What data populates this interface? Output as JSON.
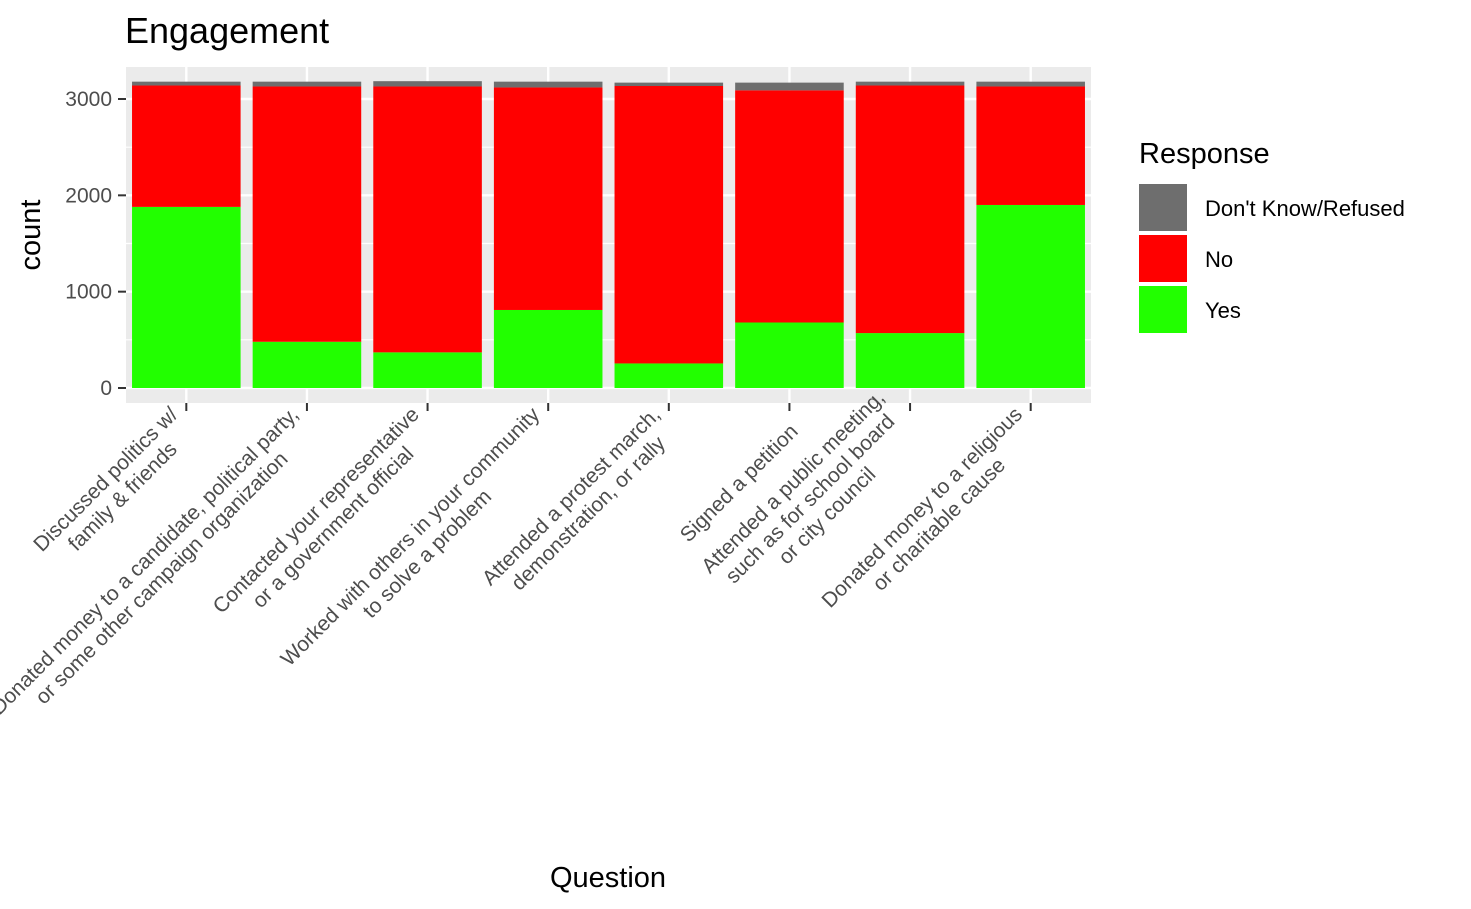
{
  "chart_data": {
    "type": "bar",
    "stacked": true,
    "title": "Engagement",
    "xlabel": "Question",
    "ylabel": "count",
    "ylim": [
      0,
      3300
    ],
    "yticks": [
      0,
      1000,
      2000,
      3000
    ],
    "grid": true,
    "legend_position": "right",
    "legend_title": "Response",
    "categories": [
      [
        "Discussed politics w/",
        "family & friends"
      ],
      [
        "Donated money to a candidate, political party,",
        "or some other campaign organization"
      ],
      [
        "Contacted your representative",
        "or a government official"
      ],
      [
        "Worked with others in your community",
        "to solve a problem"
      ],
      [
        "Attended a protest march,",
        "demonstration, or rally"
      ],
      [
        "Signed a petition"
      ],
      [
        "Attended a public meeting,",
        "such as for school board",
        "or city council"
      ],
      [
        "Donated money to a religious",
        "or charitable cause"
      ]
    ],
    "series": [
      {
        "name": "Don't Know/Refused",
        "color": "#6e6e6e",
        "values": [
          40,
          50,
          55,
          60,
          35,
          80,
          40,
          50
        ]
      },
      {
        "name": "No",
        "color": "#ff0000",
        "values": [
          1260,
          2650,
          2760,
          2310,
          2880,
          2410,
          2570,
          1230
        ]
      },
      {
        "name": "Yes",
        "color": "#22ff00",
        "values": [
          1880,
          480,
          370,
          810,
          255,
          680,
          570,
          1900
        ]
      }
    ]
  }
}
